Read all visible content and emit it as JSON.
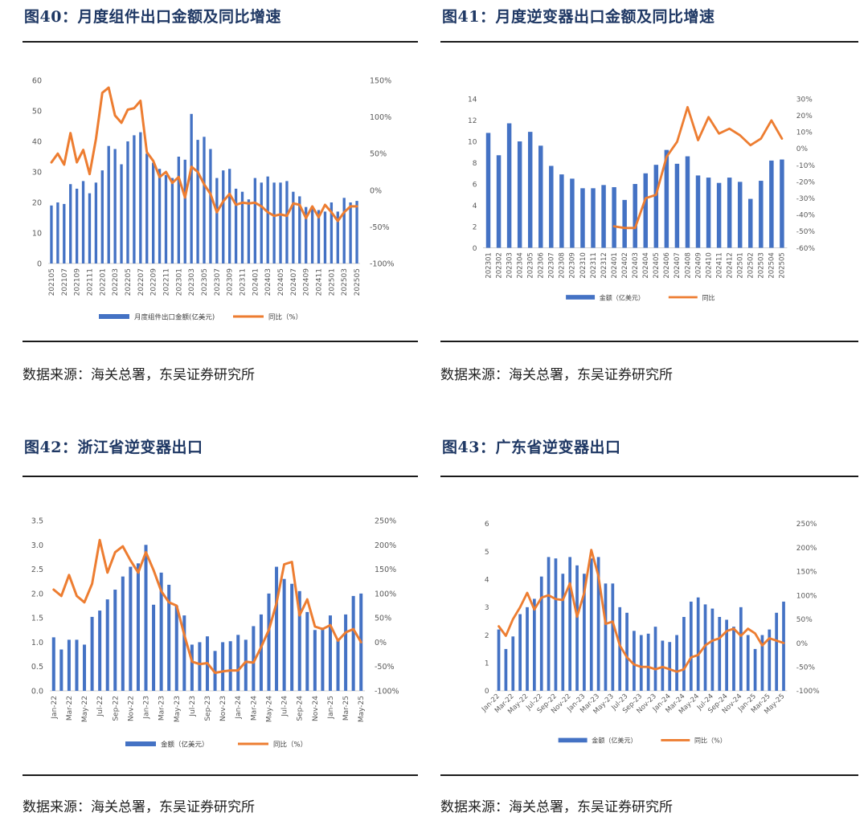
{
  "figures": [
    {
      "title": "图40：月度组件出口金额及同比增速",
      "source": "数据来源：海关总署，东吴证券研究所",
      "chart_data": {
        "type": "bar",
        "categories": [
          "202105",
          "202106",
          "202107",
          "202108",
          "202109",
          "202110",
          "202111",
          "202112",
          "202201",
          "202202",
          "202203",
          "202204",
          "202205",
          "202206",
          "202207",
          "202208",
          "202209",
          "202210",
          "202211",
          "202212",
          "202301",
          "202302",
          "202303",
          "202304",
          "202305",
          "202306",
          "202307",
          "202308",
          "202309",
          "202310",
          "202311",
          "202312",
          "202401",
          "202402",
          "202403",
          "202404",
          "202405",
          "202406",
          "202407",
          "202408",
          "202409",
          "202410",
          "202411",
          "202412",
          "202501",
          "202502",
          "202503",
          "202504",
          "202505"
        ],
        "x_tick_labels": [
          "202105",
          "202107",
          "202109",
          "202111",
          "202201",
          "202203",
          "202205",
          "202207",
          "202209",
          "202211",
          "202301",
          "202303",
          "202305",
          "202307",
          "202309",
          "202311",
          "202401",
          "202403",
          "202405",
          "202407",
          "202409",
          "202411",
          "202501",
          "202503",
          "202505"
        ],
        "series": [
          {
            "name": "月度组件出口金额(亿美元)",
            "type": "bar",
            "axis": "left",
            "values": [
              19,
              20,
              19.5,
              26,
              24.5,
              27,
              23,
              26.5,
              30.5,
              38.5,
              37.5,
              32.5,
              40,
              42,
              43,
              36,
              33,
              31,
              29,
              28,
              35,
              34,
              49,
              40.5,
              41.5,
              37.5,
              28,
              30.5,
              31,
              24.5,
              23.5,
              21,
              28,
              26.5,
              28.5,
              26.5,
              26.5,
              27,
              23.5,
              22,
              18.5,
              18,
              17.5,
              17,
              20,
              17,
              21.5,
              20,
              20.5
            ]
          },
          {
            "name": "同比（%）",
            "type": "line",
            "axis": "right",
            "values": [
              38,
              50,
              35,
              78,
              38,
              55,
              22,
              70,
              133,
              140,
              102,
              92,
              110,
              112,
              122,
              52,
              40,
              18,
              25,
              10,
              18,
              -10,
              32,
              25,
              8,
              -5,
              -30,
              -15,
              -5,
              -20,
              -17,
              -18,
              -17,
              -22,
              -30,
              -35,
              -33,
              -35,
              -18,
              -20,
              -38,
              -22,
              -37,
              -20,
              -30,
              -42,
              -30,
              -22,
              -22
            ]
          }
        ],
        "ylim_left": [
          0,
          60
        ],
        "yticks_left": [
          "0",
          "10",
          "20",
          "30",
          "40",
          "50",
          "60"
        ],
        "ylim_right": [
          -100,
          150
        ],
        "yticks_right": [
          "-100%",
          "-50%",
          "0%",
          "50%",
          "100%",
          "150%"
        ],
        "legend": [
          "月度组件出口金额(亿美元)",
          "同比（%）"
        ],
        "legend_position": "bottom",
        "colors": {
          "bar": "#4472c4",
          "line": "#ed7d31"
        }
      }
    },
    {
      "title": "图41：月度逆变器出口金额及同比增速",
      "source": "数据来源：海关总署，东吴证券研究所",
      "chart_data": {
        "type": "bar",
        "categories": [
          "202301",
          "202302",
          "202303",
          "202304",
          "202305",
          "202306",
          "202307",
          "202308",
          "202309",
          "202310",
          "202311",
          "202312",
          "202401",
          "202402",
          "202403",
          "202404",
          "202405",
          "202406",
          "202407",
          "202408",
          "202409",
          "202410",
          "202411",
          "202412",
          "202501",
          "202502",
          "202503",
          "202504",
          "202505"
        ],
        "x_tick_labels": [
          "202301",
          "202302",
          "202303",
          "202304",
          "202305",
          "202306",
          "202307",
          "202308",
          "202309",
          "202310",
          "202311",
          "202312",
          "202401",
          "202402",
          "202403",
          "202404",
          "202405",
          "202406",
          "202407",
          "202408",
          "202409",
          "202410",
          "202411",
          "202412",
          "202501",
          "202502",
          "202503",
          "202504",
          "202505"
        ],
        "series": [
          {
            "name": "金额（亿美元）",
            "type": "bar",
            "axis": "left",
            "values": [
              10.8,
              8.7,
              11.7,
              10,
              10.9,
              9.6,
              7.7,
              6.9,
              6.5,
              5.6,
              5.6,
              5.9,
              5.7,
              4.5,
              6,
              7,
              7.8,
              9.2,
              7.9,
              8.6,
              6.8,
              6.6,
              6.1,
              6.6,
              6.2,
              4.6,
              6.3,
              8.2,
              8.3
            ]
          },
          {
            "name": "同比",
            "type": "line",
            "axis": "right",
            "values": [
              null,
              null,
              null,
              null,
              null,
              null,
              null,
              null,
              null,
              null,
              null,
              null,
              -47,
              -48,
              -48,
              -30,
              -28,
              -5,
              4,
              25,
              5,
              19,
              9,
              12,
              8,
              2,
              6,
              17,
              6
            ]
          }
        ],
        "ylim_left": [
          0,
          14
        ],
        "yticks_left": [
          "0",
          "2",
          "4",
          "6",
          "8",
          "10",
          "12",
          "14"
        ],
        "ylim_right": [
          -60,
          30
        ],
        "yticks_right": [
          "-60%",
          "-50%",
          "-40%",
          "-30%",
          "-20%",
          "-10%",
          "0%",
          "10%",
          "20%",
          "30%"
        ],
        "legend": [
          "金额（亿美元）",
          "同比"
        ],
        "legend_position": "bottom",
        "colors": {
          "bar": "#4472c4",
          "line": "#ed7d31"
        }
      }
    },
    {
      "title": "图42：浙江省逆变器出口",
      "source": "数据来源：海关总署，东吴证券研究所",
      "chart_data": {
        "type": "bar",
        "categories": [
          "Jan-22",
          "Feb-22",
          "Mar-22",
          "Apr-22",
          "May-22",
          "Jun-22",
          "Jul-22",
          "Aug-22",
          "Sep-22",
          "Oct-22",
          "Nov-22",
          "Dec-22",
          "Jan-23",
          "Feb-23",
          "Mar-23",
          "Apr-23",
          "May-23",
          "Jun-23",
          "Jul-23",
          "Aug-23",
          "Sep-23",
          "Oct-23",
          "Nov-23",
          "Dec-23",
          "Jan-24",
          "Feb-24",
          "Mar-24",
          "Apr-24",
          "May-24",
          "Jun-24",
          "Jul-24",
          "Aug-24",
          "Sep-24",
          "Oct-24",
          "Nov-24",
          "Dec-24",
          "Jan-25",
          "Feb-25",
          "Mar-25",
          "Apr-25",
          "May-25"
        ],
        "x_tick_labels": [
          "Jan-22",
          "Mar-22",
          "May-22",
          "Jul-22",
          "Sep-22",
          "Nov-22",
          "Jan-23",
          "Mar-23",
          "May-23",
          "Jul-23",
          "Sep-23",
          "Nov-23",
          "Jan-24",
          "Mar-24",
          "May-24",
          "Jul-24",
          "Sep-24",
          "Nov-24",
          "Jan-25",
          "Mar-25",
          "May-25"
        ],
        "series": [
          {
            "name": "金额（亿美元）",
            "type": "bar",
            "axis": "left",
            "values": [
              1.1,
              0.85,
              1.05,
              1.05,
              0.95,
              1.52,
              1.65,
              1.88,
              2.08,
              2.35,
              2.55,
              2.62,
              3.0,
              1.77,
              2.43,
              2.18,
              1.75,
              1.55,
              0.95,
              1.0,
              1.12,
              0.82,
              1.0,
              1.02,
              1.15,
              1.05,
              1.33,
              1.57,
              2.0,
              2.55,
              2.3,
              2.2,
              2.05,
              1.62,
              1.25,
              1.3,
              1.55,
              1.05,
              1.57,
              1.95,
              2.0
            ]
          },
          {
            "name": "同比（%）",
            "type": "line",
            "axis": "right",
            "values": [
              108,
              95,
              138,
              95,
              82,
              120,
              210,
              143,
              185,
              197,
              168,
              143,
              185,
              148,
              105,
              82,
              75,
              15,
              -40,
              -45,
              -43,
              -63,
              -60,
              -58,
              -58,
              -40,
              -42,
              -10,
              25,
              80,
              160,
              165,
              55,
              88,
              32,
              27,
              35,
              3,
              20,
              27,
              0
            ]
          }
        ],
        "ylim_left": [
          0,
          3.5
        ],
        "yticks_left": [
          "0.0",
          "0.5",
          "1.0",
          "1.5",
          "2.0",
          "2.5",
          "3.0",
          "3.5"
        ],
        "ylim_right": [
          -100,
          250
        ],
        "yticks_right": [
          "-100%",
          "-50%",
          "0%",
          "50%",
          "100%",
          "150%",
          "200%",
          "250%"
        ],
        "legend": [
          "金额（亿美元）",
          "同比（%）"
        ],
        "legend_position": "bottom",
        "colors": {
          "bar": "#4472c4",
          "line": "#ed7d31"
        }
      }
    },
    {
      "title": "图43：广东省逆变器出口",
      "source": "数据来源：海关总署，东吴证券研究所",
      "chart_data": {
        "type": "bar",
        "categories": [
          "Jan-22",
          "Feb-22",
          "Mar-22",
          "Apr-22",
          "May-22",
          "Jun-22",
          "Jul-22",
          "Aug-22",
          "Sep-22",
          "Oct-22",
          "Nov-22",
          "Dec-22",
          "Jan-23",
          "Feb-23",
          "Mar-23",
          "Apr-23",
          "May-23",
          "Jun-23",
          "Jul-23",
          "Aug-23",
          "Sep-23",
          "Oct-23",
          "Nov-23",
          "Dec-23",
          "Jan-24",
          "Feb-24",
          "Mar-24",
          "Apr-24",
          "May-24",
          "Jun-24",
          "Jul-24",
          "Aug-24",
          "Sep-24",
          "Oct-24",
          "Nov-24",
          "Dec-24",
          "Jan-25",
          "Feb-25",
          "Mar-25",
          "Apr-25",
          "May-25"
        ],
        "x_tick_labels": [
          "Jan-22",
          "Mar-22",
          "May-22",
          "Jul-22",
          "Sep-22",
          "Nov-22",
          "Jan-23",
          "Mar-23",
          "May-23",
          "Jul-23",
          "Sep-23",
          "Nov-23",
          "Jan-24",
          "Mar-24",
          "May-24",
          "Jul-24",
          "Sep-24",
          "Nov-24",
          "Jan-25",
          "Mar-25",
          "May-25"
        ],
        "series": [
          {
            "name": "金额（亿美元）",
            "type": "bar",
            "axis": "left",
            "values": [
              2.2,
              1.5,
              1.95,
              2.75,
              3.0,
              3.3,
              4.1,
              4.8,
              4.75,
              4.2,
              4.8,
              4.5,
              4.2,
              4.75,
              4.8,
              3.85,
              3.85,
              3.0,
              2.8,
              2.15,
              2.0,
              2.05,
              2.3,
              1.8,
              1.75,
              2.0,
              2.65,
              3.2,
              3.35,
              3.1,
              2.95,
              2.65,
              2.55,
              2.3,
              3.0,
              2.0,
              1.5,
              2.0,
              2.2,
              2.8,
              3.2
            ]
          },
          {
            "name": "同比（%）",
            "type": "line",
            "axis": "right",
            "values": [
              35,
              15,
              50,
              75,
              105,
              70,
              95,
              100,
              92,
              90,
              125,
              55,
              105,
              195,
              140,
              40,
              45,
              -5,
              -30,
              -45,
              -50,
              -50,
              -55,
              -50,
              -55,
              -60,
              -55,
              -30,
              -25,
              -5,
              5,
              10,
              25,
              30,
              15,
              30,
              20,
              -5,
              10,
              5,
              0
            ]
          }
        ],
        "ylim_left": [
          0,
          6
        ],
        "yticks_left": [
          "0",
          "1",
          "2",
          "3",
          "4",
          "5",
          "6"
        ],
        "ylim_right": [
          -100,
          250
        ],
        "yticks_right": [
          "-100%",
          "-50%",
          "0%",
          "50%",
          "100%",
          "150%",
          "200%",
          "250%"
        ],
        "legend": [
          "金额（亿美元）",
          "同比（%）"
        ],
        "legend_position": "bottom",
        "x_label_rotation": "diagonal",
        "colors": {
          "bar": "#4472c4",
          "line": "#ed7d31"
        }
      }
    }
  ]
}
